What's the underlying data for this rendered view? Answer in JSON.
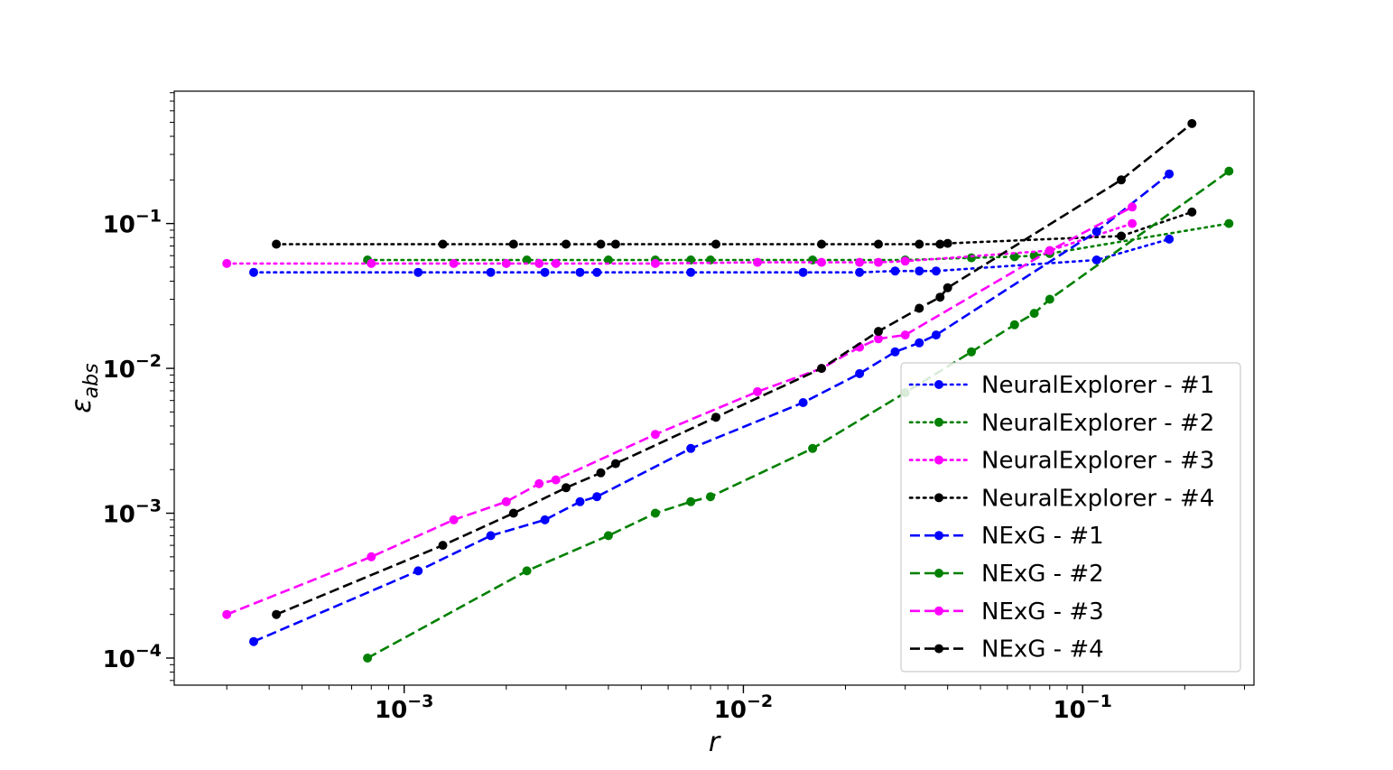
{
  "chart_data": {
    "type": "line",
    "title": "",
    "xlabel": "r",
    "ylabel": "ε",
    "ylabel_sub": "abs",
    "xscale": "log",
    "yscale": "log",
    "xlim": [
      0.00021,
      0.32
    ],
    "ylim": [
      6.5e-05,
      0.82
    ],
    "x_ticks": [
      {
        "value": 0.001,
        "base": "10",
        "exp": "−3"
      },
      {
        "value": 0.01,
        "base": "10",
        "exp": "−2"
      },
      {
        "value": 0.1,
        "base": "10",
        "exp": "−1"
      }
    ],
    "y_ticks": [
      {
        "value": 0.0001,
        "base": "10",
        "exp": "−4"
      },
      {
        "value": 0.001,
        "base": "10",
        "exp": "−3"
      },
      {
        "value": 0.01,
        "base": "10",
        "exp": "−2"
      },
      {
        "value": 0.1,
        "base": "10",
        "exp": "−1"
      }
    ],
    "grid": false,
    "legend_position": "lower-right",
    "series": [
      {
        "name": "NeuralExplorer - #1",
        "color": "#0000ff",
        "style": "dotted",
        "x": [
          0.00036,
          0.0011,
          0.0018,
          0.0026,
          0.0033,
          0.0037,
          0.007,
          0.015,
          0.022,
          0.028,
          0.033,
          0.037,
          0.11,
          0.18
        ],
        "y": [
          0.046,
          0.046,
          0.046,
          0.046,
          0.046,
          0.046,
          0.046,
          0.046,
          0.046,
          0.047,
          0.047,
          0.047,
          0.056,
          0.078
        ]
      },
      {
        "name": "NeuralExplorer - #2",
        "color": "#008000",
        "style": "dotted",
        "x": [
          0.00078,
          0.0023,
          0.004,
          0.0055,
          0.007,
          0.008,
          0.016,
          0.03,
          0.047,
          0.063,
          0.072,
          0.08,
          0.27
        ],
        "y": [
          0.056,
          0.056,
          0.056,
          0.056,
          0.056,
          0.056,
          0.056,
          0.056,
          0.058,
          0.059,
          0.06,
          0.062,
          0.1
        ]
      },
      {
        "name": "NeuralExplorer - #3",
        "color": "#ff00ff",
        "style": "dotted",
        "x": [
          0.0003,
          0.0008,
          0.0014,
          0.002,
          0.0025,
          0.0028,
          0.0055,
          0.011,
          0.017,
          0.022,
          0.025,
          0.03,
          0.08,
          0.14
        ],
        "y": [
          0.053,
          0.053,
          0.053,
          0.053,
          0.053,
          0.053,
          0.053,
          0.054,
          0.054,
          0.054,
          0.054,
          0.055,
          0.065,
          0.1
        ]
      },
      {
        "name": "NeuralExplorer - #4",
        "color": "#000000",
        "style": "dotted",
        "x": [
          0.00042,
          0.0013,
          0.0021,
          0.003,
          0.0038,
          0.0042,
          0.0083,
          0.017,
          0.025,
          0.033,
          0.038,
          0.04,
          0.13,
          0.21
        ],
        "y": [
          0.072,
          0.072,
          0.072,
          0.072,
          0.072,
          0.072,
          0.072,
          0.072,
          0.072,
          0.072,
          0.072,
          0.073,
          0.082,
          0.12
        ]
      },
      {
        "name": "NExG - #1",
        "color": "#0000ff",
        "style": "dashed",
        "x": [
          0.00036,
          0.0011,
          0.0018,
          0.0026,
          0.0033,
          0.0037,
          0.007,
          0.015,
          0.022,
          0.028,
          0.033,
          0.037,
          0.11,
          0.18
        ],
        "y": [
          0.00013,
          0.0004,
          0.0007,
          0.0009,
          0.0012,
          0.0013,
          0.0028,
          0.0058,
          0.0092,
          0.013,
          0.015,
          0.017,
          0.088,
          0.22
        ]
      },
      {
        "name": "NExG - #2",
        "color": "#008000",
        "style": "dashed",
        "x": [
          0.00078,
          0.0023,
          0.004,
          0.0055,
          0.007,
          0.008,
          0.016,
          0.03,
          0.047,
          0.063,
          0.072,
          0.08,
          0.27
        ],
        "y": [
          0.0001,
          0.0004,
          0.0007,
          0.001,
          0.0012,
          0.0013,
          0.0028,
          0.0068,
          0.013,
          0.02,
          0.024,
          0.03,
          0.23
        ]
      },
      {
        "name": "NExG - #3",
        "color": "#ff00ff",
        "style": "dashed",
        "x": [
          0.0003,
          0.0008,
          0.0014,
          0.002,
          0.0025,
          0.0028,
          0.0055,
          0.011,
          0.017,
          0.022,
          0.025,
          0.03,
          0.08,
          0.14
        ],
        "y": [
          0.0002,
          0.0005,
          0.0009,
          0.0012,
          0.0016,
          0.0017,
          0.0035,
          0.0069,
          0.01,
          0.014,
          0.016,
          0.017,
          0.065,
          0.13
        ]
      },
      {
        "name": "NExG - #4",
        "color": "#000000",
        "style": "dashed",
        "x": [
          0.00042,
          0.0013,
          0.0021,
          0.003,
          0.0038,
          0.0042,
          0.0083,
          0.017,
          0.025,
          0.033,
          0.038,
          0.04,
          0.13,
          0.21
        ],
        "y": [
          0.0002,
          0.0006,
          0.001,
          0.0015,
          0.0019,
          0.0022,
          0.0046,
          0.01,
          0.018,
          0.026,
          0.031,
          0.036,
          0.2,
          0.49
        ]
      }
    ]
  }
}
